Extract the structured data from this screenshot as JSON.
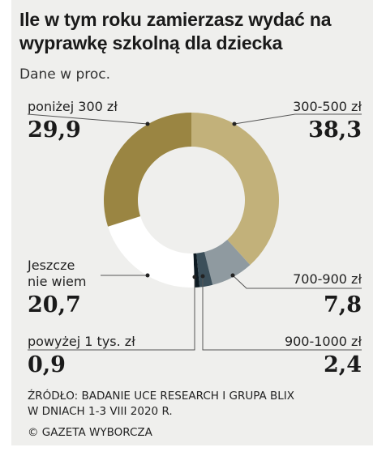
{
  "chart_data": {
    "type": "pie",
    "variant": "donut",
    "title": "Ile w tym roku zamierzasz wydać na wyprawkę szkolną dla dziecka",
    "subtitle": "Dane w proc.",
    "slices": [
      {
        "label": "300-500 zł",
        "value": 38.3,
        "value_text": "38,3",
        "color": "#c2b17a"
      },
      {
        "label": "700-900 zł",
        "value": 7.8,
        "value_text": "7,8",
        "color": "#8f9aa0"
      },
      {
        "label": "900-1000 zł",
        "value": 2.4,
        "value_text": "2,4",
        "color": "#3b4f5a"
      },
      {
        "label": "powyżej 1 tys. zł",
        "value": 0.9,
        "value_text": "0,9",
        "color": "#0d1a22"
      },
      {
        "label": "Jeszcze\nnie wiem",
        "value": 20.7,
        "value_text": "20,7",
        "color": "#ffffff"
      },
      {
        "label": "poniżej 300 zł",
        "value": 29.9,
        "value_text": "29,9",
        "color": "#9a8542"
      }
    ],
    "source": "ŹRÓDŁO: BADANIE UCE RESEARCH I GRUPA BLIX\nW DNIACH 1-3 VIII 2020 R.",
    "copyright": "©  GAZETA WYBORCZA"
  }
}
